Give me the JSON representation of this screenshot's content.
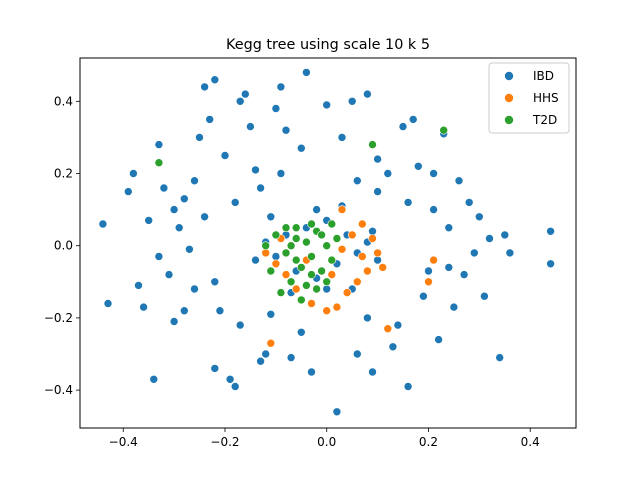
{
  "chart_data": {
    "type": "scatter",
    "title": "Kegg tree using scale 10 k 5",
    "xlabel": "",
    "ylabel": "",
    "xlim": [
      -0.485,
      0.49
    ],
    "ylim": [
      -0.505,
      0.52
    ],
    "xticks": [
      -0.4,
      -0.2,
      0.0,
      0.2,
      0.4
    ],
    "xtick_labels": [
      "−0.4",
      "−0.2",
      "0.0",
      "0.2",
      "0.4"
    ],
    "yticks": [
      -0.4,
      -0.2,
      0.0,
      0.2,
      0.4
    ],
    "ytick_labels": [
      "−0.4",
      "−0.2",
      "0.0",
      "0.2",
      "0.4"
    ],
    "grid": false,
    "legend_position": "top-right",
    "series": [
      {
        "name": "IBD",
        "color": "#1f77b4",
        "points": [
          [
            -0.44,
            0.06
          ],
          [
            -0.43,
            -0.16
          ],
          [
            -0.39,
            0.15
          ],
          [
            -0.38,
            0.2
          ],
          [
            -0.37,
            -0.11
          ],
          [
            -0.36,
            -0.17
          ],
          [
            -0.34,
            -0.37
          ],
          [
            -0.33,
            0.28
          ],
          [
            -0.33,
            -0.03
          ],
          [
            -0.32,
            0.16
          ],
          [
            -0.3,
            0.1
          ],
          [
            -0.3,
            -0.21
          ],
          [
            -0.28,
            0.13
          ],
          [
            -0.27,
            -0.01
          ],
          [
            -0.26,
            -0.12
          ],
          [
            -0.25,
            0.3
          ],
          [
            -0.24,
            0.44
          ],
          [
            -0.23,
            0.35
          ],
          [
            -0.22,
            0.46
          ],
          [
            -0.22,
            -0.34
          ],
          [
            -0.21,
            -0.18
          ],
          [
            -0.2,
            0.25
          ],
          [
            -0.19,
            -0.37
          ],
          [
            -0.18,
            -0.39
          ],
          [
            -0.17,
            0.4
          ],
          [
            -0.16,
            0.42
          ],
          [
            -0.15,
            0.33
          ],
          [
            -0.14,
            0.21
          ],
          [
            -0.13,
            -0.32
          ],
          [
            -0.12,
            -0.3
          ],
          [
            -0.1,
            0.38
          ],
          [
            -0.09,
            0.44
          ],
          [
            -0.08,
            0.32
          ],
          [
            -0.07,
            -0.31
          ],
          [
            -0.05,
            0.27
          ],
          [
            -0.04,
            0.48
          ],
          [
            -0.03,
            -0.35
          ],
          [
            0.0,
            0.39
          ],
          [
            0.02,
            -0.46
          ],
          [
            0.03,
            0.3
          ],
          [
            0.05,
            0.4
          ],
          [
            0.06,
            -0.3
          ],
          [
            0.08,
            0.42
          ],
          [
            0.09,
            -0.35
          ],
          [
            0.1,
            0.15
          ],
          [
            0.12,
            0.2
          ],
          [
            0.13,
            -0.28
          ],
          [
            0.15,
            0.33
          ],
          [
            0.16,
            -0.39
          ],
          [
            0.17,
            0.35
          ],
          [
            0.18,
            0.22
          ],
          [
            0.2,
            -0.07
          ],
          [
            0.21,
            0.1
          ],
          [
            0.22,
            -0.26
          ],
          [
            0.23,
            0.31
          ],
          [
            0.24,
            0.05
          ],
          [
            0.25,
            -0.17
          ],
          [
            0.26,
            0.18
          ],
          [
            0.27,
            -0.08
          ],
          [
            0.28,
            0.12
          ],
          [
            0.29,
            -0.02
          ],
          [
            0.3,
            0.08
          ],
          [
            0.31,
            -0.14
          ],
          [
            0.32,
            0.02
          ],
          [
            0.34,
            -0.31
          ],
          [
            0.35,
            0.03
          ],
          [
            0.36,
            -0.02
          ],
          [
            0.44,
            0.04
          ],
          [
            0.44,
            -0.05
          ],
          [
            -0.29,
            0.05
          ],
          [
            -0.24,
            0.08
          ],
          [
            -0.26,
            0.18
          ],
          [
            -0.22,
            -0.1
          ],
          [
            -0.18,
            0.12
          ],
          [
            -0.17,
            -0.22
          ],
          [
            -0.13,
            0.16
          ],
          [
            -0.11,
            -0.19
          ],
          [
            -0.09,
            0.2
          ],
          [
            -0.05,
            -0.24
          ],
          [
            0.06,
            0.18
          ],
          [
            0.08,
            -0.2
          ],
          [
            0.1,
            0.24
          ],
          [
            0.14,
            -0.22
          ],
          [
            0.16,
            0.12
          ],
          [
            0.19,
            -0.14
          ],
          [
            0.21,
            0.2
          ],
          [
            0.24,
            -0.06
          ],
          [
            -0.31,
            -0.08
          ],
          [
            -0.35,
            0.07
          ],
          [
            -0.28,
            -0.18
          ],
          [
            -0.1,
            -0.03
          ],
          [
            -0.08,
            0.03
          ],
          [
            -0.06,
            -0.07
          ],
          [
            -0.04,
            0.05
          ],
          [
            -0.02,
            -0.09
          ],
          [
            0.0,
            0.07
          ],
          [
            0.02,
            -0.05
          ],
          [
            0.04,
            0.03
          ],
          [
            0.06,
            -0.02
          ],
          [
            0.08,
            0.01
          ],
          [
            -0.12,
            0.01
          ],
          [
            -0.14,
            -0.04
          ],
          [
            0.1,
            -0.04
          ],
          [
            0.09,
            0.04
          ],
          [
            0.0,
            -0.12
          ],
          [
            -0.02,
            0.1
          ],
          [
            0.03,
            0.11
          ],
          [
            -0.07,
            -0.13
          ],
          [
            0.05,
            -0.12
          ],
          [
            -0.11,
            0.08
          ]
        ]
      },
      {
        "name": "HHS",
        "color": "#ff7f0e",
        "points": [
          [
            0.03,
            0.1
          ],
          [
            0.07,
            0.06
          ],
          [
            0.09,
            0.02
          ],
          [
            0.1,
            -0.02
          ],
          [
            0.11,
            -0.06
          ],
          [
            0.08,
            -0.07
          ],
          [
            0.06,
            -0.1
          ],
          [
            0.04,
            -0.13
          ],
          [
            0.02,
            -0.17
          ],
          [
            0.0,
            -0.18
          ],
          [
            -0.03,
            -0.16
          ],
          [
            -0.06,
            -0.12
          ],
          [
            -0.08,
            -0.08
          ],
          [
            -0.1,
            -0.05
          ],
          [
            -0.12,
            -0.02
          ],
          [
            -0.11,
            -0.27
          ],
          [
            0.12,
            -0.23
          ],
          [
            0.21,
            -0.04
          ],
          [
            0.2,
            -0.1
          ],
          [
            0.05,
            0.03
          ],
          [
            0.07,
            -0.03
          ],
          [
            -0.04,
            -0.04
          ],
          [
            0.01,
            -0.08
          ],
          [
            0.03,
            -0.01
          ],
          [
            -0.09,
            0.02
          ]
        ]
      },
      {
        "name": "T2D",
        "color": "#2ca02c",
        "points": [
          [
            -0.33,
            0.23
          ],
          [
            0.09,
            0.28
          ],
          [
            0.23,
            0.32
          ],
          [
            -0.1,
            0.03
          ],
          [
            -0.08,
            -0.02
          ],
          [
            -0.06,
            0.05
          ],
          [
            -0.05,
            -0.06
          ],
          [
            -0.04,
            0.01
          ],
          [
            -0.03,
            -0.03
          ],
          [
            -0.02,
            0.04
          ],
          [
            -0.01,
            -0.07
          ],
          [
            0.0,
            0.0
          ],
          [
            0.01,
            -0.04
          ],
          [
            0.02,
            0.02
          ],
          [
            -0.07,
            -0.1
          ],
          [
            -0.09,
            -0.13
          ],
          [
            -0.06,
            0.02
          ],
          [
            -0.04,
            -0.11
          ],
          [
            -0.03,
            0.06
          ],
          [
            -0.01,
            0.03
          ],
          [
            0.0,
            -0.1
          ],
          [
            -0.11,
            -0.07
          ],
          [
            -0.12,
            0.0
          ],
          [
            -0.05,
            -0.15
          ],
          [
            -0.02,
            -0.12
          ],
          [
            -0.08,
            0.05
          ],
          [
            -0.06,
            -0.04
          ],
          [
            0.01,
            0.06
          ],
          [
            -0.03,
            -0.08
          ],
          [
            -0.07,
            0.0
          ]
        ]
      }
    ]
  }
}
